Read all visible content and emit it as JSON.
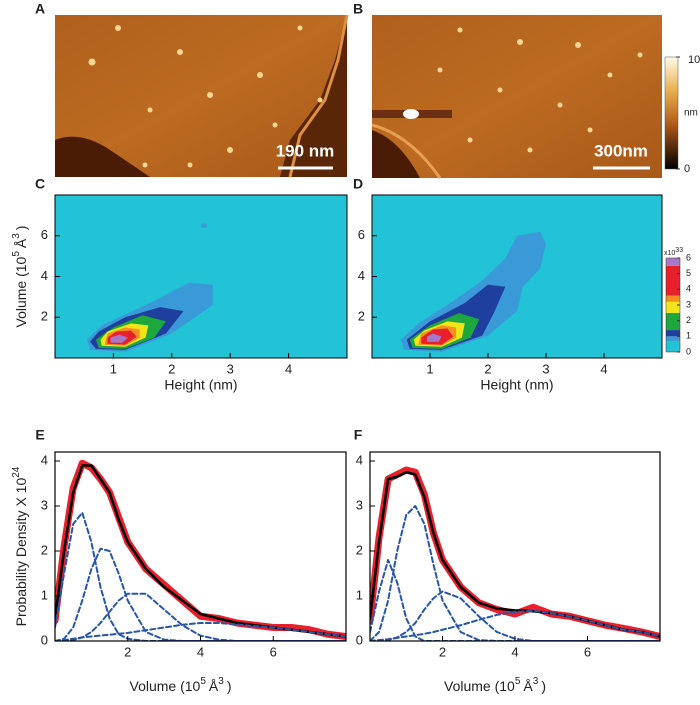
{
  "images": [
    {
      "panel": "A",
      "scale_bar": "190 nm"
    },
    {
      "panel": "B",
      "scale_bar": "300nm"
    }
  ],
  "height_colorbar": {
    "label": "nm",
    "lim": [
      0,
      10
    ],
    "ticks": [
      0,
      10
    ]
  },
  "density_colorbar": {
    "label_parts": [
      "x10",
      "33"
    ],
    "lim": [
      0,
      6
    ],
    "ticks": [
      0,
      1,
      2,
      3,
      4,
      5,
      6
    ],
    "stops": [
      {
        "value": 0,
        "color": "#22c3d6"
      },
      {
        "value": 0.7,
        "color": "#3a9ad8"
      },
      {
        "value": 1,
        "color": "#1e3f9e"
      },
      {
        "value": 1.4,
        "color": "#1ca83c"
      },
      {
        "value": 2.5,
        "color": "#f2e418"
      },
      {
        "value": 3.2,
        "color": "#f39020"
      },
      {
        "value": 3.6,
        "color": "#e8202c"
      },
      {
        "value": 5.5,
        "color": "#a878c8"
      }
    ]
  },
  "chart_data": [
    {
      "type": "contour",
      "panel": "C",
      "xlabel": "Height (nm)",
      "ylabel_parts": [
        "Volume (10",
        "5",
        "Å",
        "3",
        ")"
      ],
      "xlim": [
        0,
        5
      ],
      "xticks": [
        1,
        2,
        3,
        4
      ],
      "ylim": [
        0,
        8
      ],
      "yticks": [
        2,
        4,
        6
      ],
      "background": "#22c3d6",
      "contours": [
        {
          "level": 0.5,
          "color": "#3a9ad8",
          "points": [
            [
              0.6,
              0.4
            ],
            [
              1.2,
              0.3
            ],
            [
              2.0,
              1.2
            ],
            [
              2.7,
              2.6
            ],
            [
              2.7,
              3.6
            ],
            [
              2.3,
              3.7
            ],
            [
              1.7,
              2.8
            ],
            [
              0.8,
              1.6
            ],
            [
              0.55,
              0.9
            ]
          ]
        },
        {
          "level": 0.5,
          "color": "#3a9ad8",
          "points": [
            [
              2.5,
              6.4
            ],
            [
              2.6,
              6.4
            ],
            [
              2.6,
              6.6
            ],
            [
              2.5,
              6.6
            ]
          ]
        },
        {
          "level": 1,
          "color": "#1e3f9e",
          "points": [
            [
              0.7,
              0.45
            ],
            [
              1.2,
              0.4
            ],
            [
              1.9,
              1.2
            ],
            [
              2.2,
              2.3
            ],
            [
              1.8,
              2.5
            ],
            [
              1.2,
              2.0
            ],
            [
              0.75,
              1.3
            ],
            [
              0.6,
              0.8
            ]
          ]
        },
        {
          "level": 2,
          "color": "#1ca83c",
          "points": [
            [
              0.75,
              0.5
            ],
            [
              1.2,
              0.45
            ],
            [
              1.7,
              1.0
            ],
            [
              1.9,
              1.8
            ],
            [
              1.5,
              2.1
            ],
            [
              1.0,
              1.5
            ],
            [
              0.7,
              0.9
            ]
          ]
        },
        {
          "level": 3,
          "color": "#f2e418",
          "points": [
            [
              0.8,
              0.6
            ],
            [
              1.2,
              0.55
            ],
            [
              1.55,
              1.0
            ],
            [
              1.6,
              1.6
            ],
            [
              1.3,
              1.7
            ],
            [
              0.9,
              1.3
            ],
            [
              0.78,
              0.9
            ]
          ]
        },
        {
          "level": 3.5,
          "color": "#f39020",
          "points": [
            [
              0.85,
              0.65
            ],
            [
              1.2,
              0.6
            ],
            [
              1.45,
              1.0
            ],
            [
              1.45,
              1.4
            ],
            [
              1.2,
              1.5
            ],
            [
              0.9,
              1.2
            ]
          ]
        },
        {
          "level": 4,
          "color": "#e8202c",
          "points": [
            [
              0.9,
              0.7
            ],
            [
              1.2,
              0.65
            ],
            [
              1.4,
              1.05
            ],
            [
              1.3,
              1.35
            ],
            [
              1.05,
              1.3
            ],
            [
              0.9,
              1.0
            ]
          ]
        },
        {
          "level": 6,
          "color": "#a878c8",
          "points": [
            [
              0.95,
              0.75
            ],
            [
              1.15,
              0.75
            ],
            [
              1.25,
              1.0
            ],
            [
              1.1,
              1.15
            ],
            [
              0.95,
              1.0
            ]
          ]
        }
      ]
    },
    {
      "type": "contour",
      "panel": "D",
      "xlabel": "Height (nm)",
      "xlim": [
        0,
        5
      ],
      "xticks": [
        1,
        2,
        3,
        4
      ],
      "ylim": [
        0,
        8
      ],
      "yticks": [
        2,
        4,
        6
      ],
      "background": "#22c3d6",
      "contours": [
        {
          "level": 0.5,
          "color": "#3a9ad8",
          "points": [
            [
              0.55,
              0.4
            ],
            [
              1.2,
              0.3
            ],
            [
              2.0,
              1.1
            ],
            [
              2.5,
              2.3
            ],
            [
              2.6,
              3.5
            ],
            [
              2.9,
              4.4
            ],
            [
              3.0,
              5.6
            ],
            [
              2.9,
              6.2
            ],
            [
              2.5,
              6.0
            ],
            [
              2.3,
              4.9
            ],
            [
              1.9,
              3.8
            ],
            [
              1.4,
              2.8
            ],
            [
              0.8,
              1.7
            ],
            [
              0.5,
              0.9
            ]
          ]
        },
        {
          "level": 1,
          "color": "#1e3f9e",
          "points": [
            [
              0.65,
              0.45
            ],
            [
              1.2,
              0.4
            ],
            [
              1.9,
              1.1
            ],
            [
              2.1,
              2.2
            ],
            [
              2.3,
              3.5
            ],
            [
              2.0,
              3.6
            ],
            [
              1.6,
              2.7
            ],
            [
              1.0,
              1.8
            ],
            [
              0.6,
              0.9
            ]
          ]
        },
        {
          "level": 2,
          "color": "#1ca83c",
          "points": [
            [
              0.7,
              0.5
            ],
            [
              1.2,
              0.45
            ],
            [
              1.7,
              1.0
            ],
            [
              1.85,
              1.9
            ],
            [
              1.5,
              2.2
            ],
            [
              1.0,
              1.6
            ],
            [
              0.65,
              0.9
            ]
          ]
        },
        {
          "level": 3,
          "color": "#f2e418",
          "points": [
            [
              0.75,
              0.6
            ],
            [
              1.2,
              0.55
            ],
            [
              1.55,
              1.0
            ],
            [
              1.6,
              1.7
            ],
            [
              1.3,
              1.8
            ],
            [
              0.9,
              1.35
            ],
            [
              0.72,
              0.9
            ]
          ]
        },
        {
          "level": 3.5,
          "color": "#f39020",
          "points": [
            [
              0.8,
              0.65
            ],
            [
              1.2,
              0.6
            ],
            [
              1.45,
              1.0
            ],
            [
              1.45,
              1.5
            ],
            [
              1.2,
              1.6
            ],
            [
              0.85,
              1.2
            ]
          ]
        },
        {
          "level": 4,
          "color": "#e8202c",
          "points": [
            [
              0.85,
              0.7
            ],
            [
              1.2,
              0.65
            ],
            [
              1.4,
              1.05
            ],
            [
              1.3,
              1.45
            ],
            [
              1.05,
              1.4
            ],
            [
              0.85,
              1.0
            ]
          ]
        },
        {
          "level": 6,
          "color": "#a878c8",
          "points": [
            [
              0.95,
              0.8
            ],
            [
              1.15,
              0.8
            ],
            [
              1.2,
              1.05
            ],
            [
              1.05,
              1.2
            ],
            [
              0.95,
              1.05
            ]
          ]
        }
      ]
    },
    {
      "type": "line",
      "panel": "E",
      "ylabel_parts": [
        "Probability Density X 10",
        "24"
      ],
      "xlabel_parts": [
        "Volume (10",
        "5",
        "Å",
        "3",
        ")"
      ],
      "xlim": [
        0,
        8
      ],
      "xticks": [
        2,
        4,
        6
      ],
      "ylim": [
        0,
        4.2
      ],
      "yticks": [
        0,
        1,
        2,
        3,
        4
      ],
      "x": [
        0,
        0.25,
        0.5,
        0.75,
        1,
        1.25,
        1.5,
        1.75,
        2,
        2.5,
        3,
        3.5,
        4,
        4.5,
        5,
        5.5,
        6,
        6.5,
        7,
        7.5,
        8
      ],
      "series": [
        {
          "color": "#e8202c",
          "style": "thick",
          "values": [
            0.45,
            2.1,
            3.4,
            3.95,
            3.85,
            3.6,
            3.3,
            2.75,
            2.2,
            1.6,
            1.25,
            0.9,
            0.55,
            0.5,
            0.4,
            0.35,
            0.3,
            0.3,
            0.25,
            0.15,
            0.1
          ]
        },
        {
          "color": "#000000",
          "style": "solid",
          "values": [
            0.5,
            2.0,
            3.3,
            3.9,
            3.9,
            3.6,
            3.3,
            2.7,
            2.2,
            1.6,
            1.2,
            0.9,
            0.6,
            0.5,
            0.4,
            0.35,
            0.3,
            0.25,
            0.2,
            0.15,
            0.1
          ]
        },
        {
          "color": "#2a55a8",
          "style": "dashed",
          "values": [
            0.3,
            1.5,
            2.6,
            2.85,
            2.2,
            1.2,
            0.5,
            0.15,
            0.05,
            0,
            0,
            0,
            0,
            0,
            0,
            0,
            0,
            0,
            0,
            0,
            0
          ]
        },
        {
          "color": "#2a55a8",
          "style": "dashed",
          "values": [
            0,
            0.05,
            0.3,
            0.9,
            1.6,
            2.05,
            2.0,
            1.5,
            0.9,
            0.2,
            0.03,
            0,
            0,
            0,
            0,
            0,
            0,
            0,
            0,
            0,
            0
          ]
        },
        {
          "color": "#2a55a8",
          "style": "dashed",
          "values": [
            0,
            0,
            0.02,
            0.08,
            0.2,
            0.4,
            0.65,
            0.9,
            1.05,
            1.05,
            0.7,
            0.35,
            0.12,
            0.03,
            0,
            0,
            0,
            0,
            0,
            0,
            0
          ]
        },
        {
          "color": "#2a55a8",
          "style": "dashed",
          "values": [
            0,
            0.02,
            0.05,
            0.08,
            0.1,
            0.12,
            0.14,
            0.16,
            0.18,
            0.24,
            0.3,
            0.36,
            0.4,
            0.4,
            0.37,
            0.33,
            0.3,
            0.25,
            0.2,
            0.15,
            0.1
          ]
        }
      ]
    },
    {
      "type": "line",
      "panel": "F",
      "xlabel_parts": [
        "Volume (10",
        "5",
        "Å",
        "3",
        ")"
      ],
      "xlim": [
        0,
        8
      ],
      "xticks": [
        2,
        4,
        6
      ],
      "ylim": [
        0,
        4.2
      ],
      "yticks": [
        0,
        1,
        2,
        3,
        4
      ],
      "x": [
        0,
        0.25,
        0.5,
        0.75,
        1,
        1.25,
        1.5,
        1.75,
        2,
        2.5,
        3,
        3.5,
        4,
        4.5,
        5,
        5.5,
        6,
        6.5,
        7,
        7.5,
        8
      ],
      "series": [
        {
          "color": "#e8202c",
          "style": "thick",
          "values": [
            0.45,
            2.3,
            3.6,
            3.7,
            3.8,
            3.75,
            3.25,
            2.4,
            1.8,
            1.2,
            0.85,
            0.7,
            0.6,
            0.75,
            0.6,
            0.55,
            0.45,
            0.35,
            0.28,
            0.2,
            0.1
          ]
        },
        {
          "color": "#000000",
          "style": "solid",
          "values": [
            0.5,
            2.2,
            3.6,
            3.65,
            3.75,
            3.7,
            3.2,
            2.4,
            1.8,
            1.2,
            0.85,
            0.72,
            0.68,
            0.66,
            0.62,
            0.55,
            0.45,
            0.35,
            0.25,
            0.2,
            0.1
          ]
        },
        {
          "color": "#2a55a8",
          "style": "dashed",
          "values": [
            0.2,
            1.1,
            1.8,
            1.3,
            0.5,
            0.1,
            0,
            0,
            0,
            0,
            0,
            0,
            0,
            0,
            0,
            0,
            0,
            0,
            0,
            0,
            0
          ]
        },
        {
          "color": "#2a55a8",
          "style": "dashed",
          "values": [
            0,
            0.2,
            0.9,
            2.0,
            2.8,
            3.0,
            2.6,
            1.7,
            0.9,
            0.2,
            0.02,
            0,
            0,
            0,
            0,
            0,
            0,
            0,
            0,
            0,
            0
          ]
        },
        {
          "color": "#2a55a8",
          "style": "dashed",
          "values": [
            0,
            0,
            0.02,
            0.08,
            0.2,
            0.4,
            0.7,
            0.95,
            1.1,
            0.95,
            0.55,
            0.2,
            0.05,
            0,
            0,
            0,
            0,
            0,
            0,
            0,
            0
          ]
        },
        {
          "color": "#2a55a8",
          "style": "dashed",
          "values": [
            0,
            0.02,
            0.04,
            0.07,
            0.1,
            0.13,
            0.16,
            0.2,
            0.25,
            0.35,
            0.47,
            0.58,
            0.65,
            0.67,
            0.62,
            0.55,
            0.45,
            0.35,
            0.25,
            0.2,
            0.1
          ]
        }
      ]
    }
  ]
}
